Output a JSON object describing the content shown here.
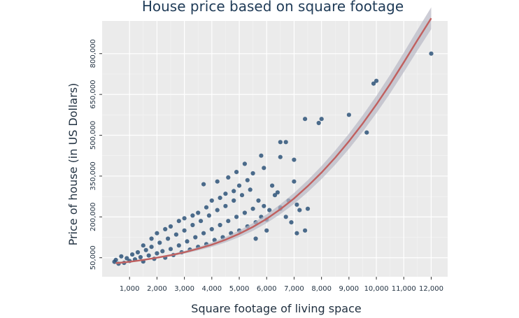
{
  "chart_data": {
    "type": "scatter",
    "title": "House price based on square footage",
    "xlabel": "Square footage of living space",
    "ylabel": "Price of house (in US Dollars)",
    "xlim": [
      0,
      12600
    ],
    "ylim": [
      -20000,
      920000
    ],
    "x_ticks": [
      1000,
      2000,
      3000,
      4000,
      5000,
      6000,
      7000,
      8000,
      9000,
      10000,
      11000,
      12000
    ],
    "x_tick_labels": [
      "1,000",
      "2,000",
      "3,000",
      "4,000",
      "5,000",
      "6,000",
      "7,000",
      "8,000",
      "9,000",
      "10,000",
      "11,000",
      "12,000"
    ],
    "y_ticks": [
      50000,
      200000,
      350000,
      500000,
      650000,
      800000
    ],
    "y_tick_labels": [
      "50,000",
      "200,000",
      "350,000",
      "500,000",
      "650,000",
      "800,000"
    ],
    "grid": true,
    "point_color": "#2e5379",
    "fit_line_color": "#c0605f",
    "confidence_band_color": "#b8b8c4",
    "panel_background": "#ebebeb",
    "fit_curve": {
      "x": [
        500,
        1000,
        1500,
        2000,
        2500,
        3000,
        3500,
        4000,
        4500,
        5000,
        5500,
        6000,
        6500,
        7000,
        7500,
        8000,
        8500,
        9000,
        9500,
        10000,
        10500,
        11000,
        11500,
        12000
      ],
      "y": [
        30000,
        35000,
        42000,
        50000,
        59000,
        70000,
        83000,
        98000,
        116000,
        138000,
        163000,
        193000,
        228000,
        268000,
        313000,
        363000,
        418000,
        478000,
        543000,
        613000,
        688000,
        768000,
        850000,
        930000
      ],
      "band_halfwidth": [
        4000,
        3000,
        3000,
        3000,
        4000,
        5000,
        6000,
        8000,
        10000,
        12000,
        14000,
        16000,
        18000,
        20000,
        22000,
        24000,
        26000,
        28000,
        30000,
        32000,
        34000,
        36000,
        38000,
        40000
      ]
    },
    "series": [
      {
        "points": [
          [
            450,
            35000
          ],
          [
            500,
            42000
          ],
          [
            600,
            28000
          ],
          [
            700,
            55000
          ],
          [
            800,
            31000
          ],
          [
            900,
            48000
          ],
          [
            1000,
            38000
          ],
          [
            1100,
            62000
          ],
          [
            1200,
            44000
          ],
          [
            1300,
            70000
          ],
          [
            1400,
            52000
          ],
          [
            1500,
            36000
          ],
          [
            1600,
            78000
          ],
          [
            1700,
            58000
          ],
          [
            1800,
            90000
          ],
          [
            1900,
            46000
          ],
          [
            2000,
            66000
          ],
          [
            2100,
            105000
          ],
          [
            2200,
            74000
          ],
          [
            2300,
            50000
          ],
          [
            2400,
            120000
          ],
          [
            2500,
            82000
          ],
          [
            2600,
            60000
          ],
          [
            2700,
            135000
          ],
          [
            2800,
            95000
          ],
          [
            2900,
            70000
          ],
          [
            3000,
            150000
          ],
          [
            3100,
            110000
          ],
          [
            3200,
            80000
          ],
          [
            3300,
            170000
          ],
          [
            3400,
            125000
          ],
          [
            3500,
            90000
          ],
          [
            3600,
            185000
          ],
          [
            3700,
            140000
          ],
          [
            3800,
            100000
          ],
          [
            3900,
            205000
          ],
          [
            4000,
            155000
          ],
          [
            4100,
            115000
          ],
          [
            4200,
            225000
          ],
          [
            4300,
            170000
          ],
          [
            4400,
            125000
          ],
          [
            4500,
            240000
          ],
          [
            4600,
            185000
          ],
          [
            4700,
            140000
          ],
          [
            4800,
            260000
          ],
          [
            4900,
            200000
          ],
          [
            5000,
            150000
          ],
          [
            5100,
            280000
          ],
          [
            5200,
            215000
          ],
          [
            5300,
            165000
          ],
          [
            5400,
            300000
          ],
          [
            5500,
            230000
          ],
          [
            5600,
            180000
          ],
          [
            5700,
            260000
          ],
          [
            5800,
            200000
          ],
          [
            5900,
            240000
          ],
          [
            6000,
            190000
          ],
          [
            6100,
            225000
          ],
          [
            6300,
            280000
          ],
          [
            6500,
            235000
          ],
          [
            6700,
            200000
          ],
          [
            6900,
            180000
          ],
          [
            7100,
            245000
          ],
          [
            7200,
            225000
          ],
          [
            1500,
            95000
          ],
          [
            2000,
            140000
          ],
          [
            2500,
            165000
          ],
          [
            3000,
            195000
          ],
          [
            3500,
            215000
          ],
          [
            4000,
            260000
          ],
          [
            4500,
            285000
          ],
          [
            5000,
            315000
          ],
          [
            1800,
            120000
          ],
          [
            2300,
            155000
          ],
          [
            2800,
            185000
          ],
          [
            3300,
            205000
          ],
          [
            3800,
            235000
          ],
          [
            4300,
            270000
          ],
          [
            4800,
            295000
          ],
          [
            5300,
            335000
          ],
          [
            5500,
            360000
          ],
          [
            5900,
            380000
          ],
          [
            6200,
            315000
          ],
          [
            6400,
            290000
          ],
          [
            6800,
            260000
          ],
          [
            7000,
            330000
          ],
          [
            7500,
            230000
          ],
          [
            7400,
            150000
          ],
          [
            3700,
            320000
          ],
          [
            4200,
            330000
          ],
          [
            4600,
            345000
          ],
          [
            4900,
            365000
          ],
          [
            5200,
            395000
          ],
          [
            5800,
            425000
          ],
          [
            6500,
            420000
          ],
          [
            7000,
            410000
          ],
          [
            6500,
            475000
          ],
          [
            6700,
            475000
          ],
          [
            7400,
            560000
          ],
          [
            8000,
            560000
          ],
          [
            7900,
            545000
          ],
          [
            9000,
            575000
          ],
          [
            9650,
            510000
          ],
          [
            9900,
            690000
          ],
          [
            10000,
            700000
          ],
          [
            12000,
            800000
          ],
          [
            7100,
            140000
          ],
          [
            6000,
            150000
          ],
          [
            5600,
            120000
          ],
          [
            6500,
            230000
          ]
        ]
      }
    ]
  }
}
